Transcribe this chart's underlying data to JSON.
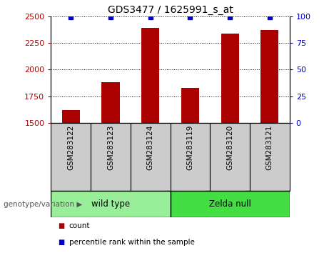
{
  "title": "GDS3477 / 1625991_s_at",
  "categories": [
    "GSM283122",
    "GSM283123",
    "GSM283124",
    "GSM283119",
    "GSM283120",
    "GSM283121"
  ],
  "count_values": [
    1620,
    1880,
    2390,
    1830,
    2340,
    2370
  ],
  "percentile_values": [
    99,
    99,
    99,
    99,
    99,
    99
  ],
  "ylim_left": [
    1500,
    2500
  ],
  "ylim_right": [
    0,
    100
  ],
  "yticks_left": [
    1500,
    1750,
    2000,
    2250,
    2500
  ],
  "yticks_right": [
    0,
    25,
    50,
    75,
    100
  ],
  "bar_color": "#aa0000",
  "percentile_color": "#0000cc",
  "groups": [
    {
      "label": "wild type",
      "indices": [
        0,
        1,
        2
      ],
      "color": "#99ee99"
    },
    {
      "label": "Zelda null",
      "indices": [
        3,
        4,
        5
      ],
      "color": "#44dd44"
    }
  ],
  "group_label": "genotype/variation",
  "legend_items": [
    {
      "label": "count",
      "color": "#aa0000"
    },
    {
      "label": "percentile rank within the sample",
      "color": "#0000cc"
    }
  ],
  "background_color": "#ffffff",
  "tick_area_bg": "#cccccc"
}
